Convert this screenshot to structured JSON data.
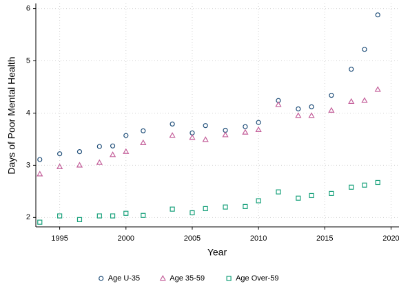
{
  "chart_data": {
    "type": "scatter",
    "x_label": "Year",
    "y_label": "Days of Poor Mental Health",
    "x": [
      1993.5,
      1995,
      1996.5,
      1998,
      1999,
      2000,
      2001.3,
      2003.5,
      2005,
      2006,
      2007.5,
      2009,
      2010,
      2011.5,
      2013,
      2014,
      2015.5,
      2017,
      2018,
      2019
    ],
    "series": [
      {
        "name": "Age U-35",
        "color": "#1f4e79",
        "marker": "circle",
        "values": [
          3.11,
          3.22,
          3.26,
          3.36,
          3.37,
          3.57,
          3.66,
          3.79,
          3.62,
          3.76,
          3.67,
          3.74,
          3.82,
          4.24,
          4.08,
          4.12,
          4.34,
          4.84,
          5.22,
          5.88
        ]
      },
      {
        "name": "Age 35-59",
        "color": "#c45f9a",
        "marker": "triangle",
        "values": [
          2.83,
          2.97,
          3.0,
          3.05,
          3.2,
          3.26,
          3.43,
          3.57,
          3.53,
          3.49,
          3.58,
          3.63,
          3.68,
          4.16,
          3.95,
          3.95,
          4.05,
          4.22,
          4.24,
          4.45
        ]
      },
      {
        "name": "Age Over-59",
        "color": "#16a07a",
        "marker": "square",
        "values": [
          1.91,
          2.03,
          1.96,
          2.03,
          2.03,
          2.08,
          2.04,
          2.16,
          2.09,
          2.17,
          2.2,
          2.21,
          2.32,
          2.49,
          2.37,
          2.42,
          2.46,
          2.58,
          2.62,
          2.67
        ]
      }
    ],
    "xlim": [
      1993.2,
      2020.6
    ],
    "ylim": [
      1.82,
      6.1
    ],
    "xticks": [
      1995,
      2000,
      2005,
      2010,
      2015,
      2020
    ],
    "yticks": [
      2,
      3,
      4,
      5,
      6
    ],
    "grid": true,
    "legend": "bottom"
  }
}
